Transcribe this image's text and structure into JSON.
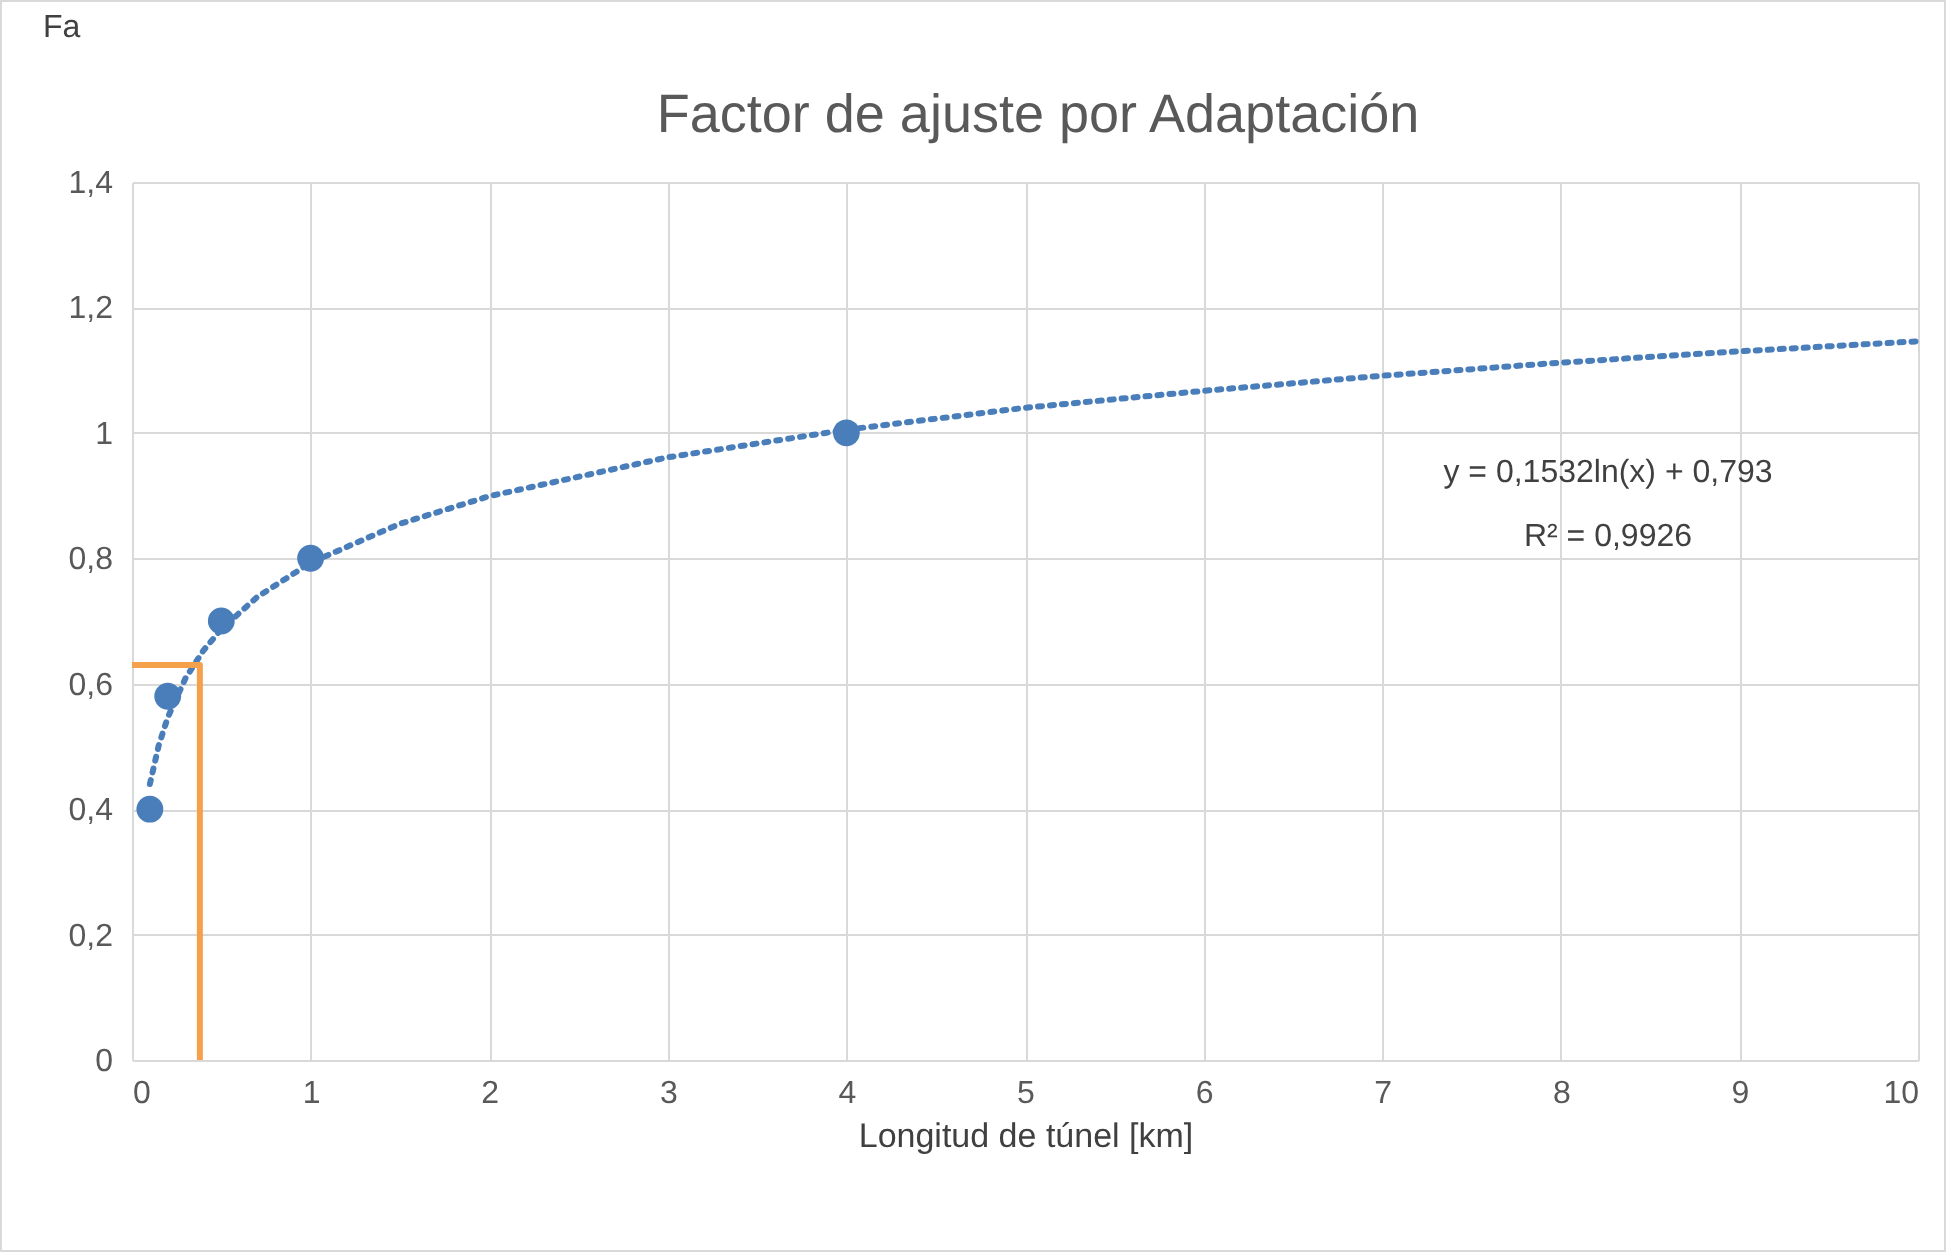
{
  "chart_data": {
    "type": "scatter",
    "title": "Factor de ajuste por Adaptación",
    "xlabel": "Longitud de túnel  [km]",
    "ylabel": "Fa",
    "xlim": [
      0,
      10
    ],
    "xticks": [
      0,
      1,
      2,
      3,
      4,
      5,
      6,
      7,
      8,
      9,
      10
    ],
    "ylim": [
      0,
      1.4
    ],
    "yticks": [
      {
        "value": 0,
        "label": "0"
      },
      {
        "value": 0.2,
        "label": "0,2"
      },
      {
        "value": 0.4,
        "label": "0,4"
      },
      {
        "value": 0.6,
        "label": "0,6"
      },
      {
        "value": 0.8,
        "label": "0,8"
      },
      {
        "value": 1,
        "label": "1"
      },
      {
        "value": 1.2,
        "label": "1,2"
      },
      {
        "value": 1.4,
        "label": "1,4"
      }
    ],
    "grid": true,
    "series": [
      {
        "marker": "circle",
        "color": "#4a7ebb",
        "x": [
          0.1,
          0.2,
          0.5,
          1,
          4
        ],
        "values": [
          0.4,
          0.58,
          0.7,
          0.8,
          1.0
        ]
      },
      {
        "type": "line",
        "color": "#4a7ebb",
        "line_style": "dotted",
        "x": [
          0.1,
          0.15,
          0.2,
          0.3,
          0.4,
          0.5,
          0.7,
          1,
          1.5,
          2,
          3,
          4,
          5,
          6,
          7,
          8,
          9,
          10
        ],
        "values": [
          0.44,
          0.502,
          0.546,
          0.609,
          0.653,
          0.687,
          0.738,
          0.793,
          0.855,
          0.899,
          0.961,
          1.005,
          1.04,
          1.067,
          1.091,
          1.112,
          1.13,
          1.146
        ]
      },
      {
        "type": "line",
        "color": "#f5a04a",
        "line_style": "solid",
        "x": [
          0,
          0.38,
          0.38
        ],
        "values": [
          0.63,
          0.63,
          0
        ]
      }
    ],
    "annotations": [
      "y = 0,1532ln(x) + 0,793",
      "R² = 0,9926"
    ]
  }
}
